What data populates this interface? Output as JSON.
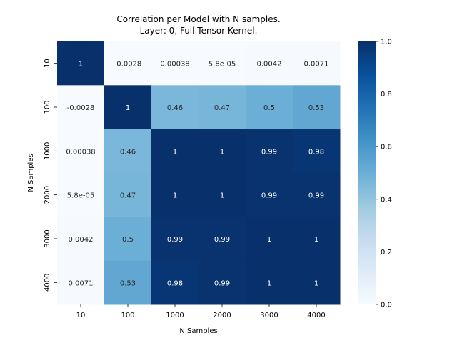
{
  "chart_data": {
    "type": "heatmap",
    "title": [
      "Correlation per Model with N samples.",
      "Layer: 0, Full Tensor Kernel."
    ],
    "xlabel": "N Samples",
    "ylabel": "N Samples",
    "x_categories": [
      "10",
      "100",
      "1000",
      "2000",
      "3000",
      "4000"
    ],
    "y_categories": [
      "10",
      "100",
      "1000",
      "2000",
      "3000",
      "4000"
    ],
    "values": [
      [
        1,
        -0.0028,
        0.00038,
        5.8e-05,
        0.0042,
        0.0071
      ],
      [
        -0.0028,
        1,
        0.46,
        0.47,
        0.5,
        0.53
      ],
      [
        0.00038,
        0.46,
        1,
        1,
        0.99,
        0.98
      ],
      [
        5.8e-05,
        0.47,
        1,
        1,
        0.99,
        0.99
      ],
      [
        0.0042,
        0.5,
        0.99,
        0.99,
        1,
        1
      ],
      [
        0.0071,
        0.53,
        0.98,
        0.99,
        1,
        1
      ]
    ],
    "annotations": [
      [
        "1",
        "-0.0028",
        "0.00038",
        "5.8e-05",
        "0.0042",
        "0.0071"
      ],
      [
        "-0.0028",
        "1",
        "0.46",
        "0.47",
        "0.5",
        "0.53"
      ],
      [
        "0.00038",
        "0.46",
        "1",
        "1",
        "0.99",
        "0.98"
      ],
      [
        "5.8e-05",
        "0.47",
        "1",
        "1",
        "0.99",
        "0.99"
      ],
      [
        "0.0042",
        "0.5",
        "0.99",
        "0.99",
        "1",
        "1"
      ],
      [
        "0.0071",
        "0.53",
        "0.98",
        "0.99",
        "1",
        "1"
      ]
    ],
    "colormap": "Blues",
    "vmin": 0,
    "vmax": 1,
    "colorbar_ticks": [
      "0.0",
      "0.2",
      "0.4",
      "0.6",
      "0.8",
      "1.0"
    ],
    "colorbar_tick_values": [
      0,
      0.2,
      0.4,
      0.6,
      0.8,
      1.0
    ],
    "grid": false,
    "colorbar_position": "right"
  }
}
